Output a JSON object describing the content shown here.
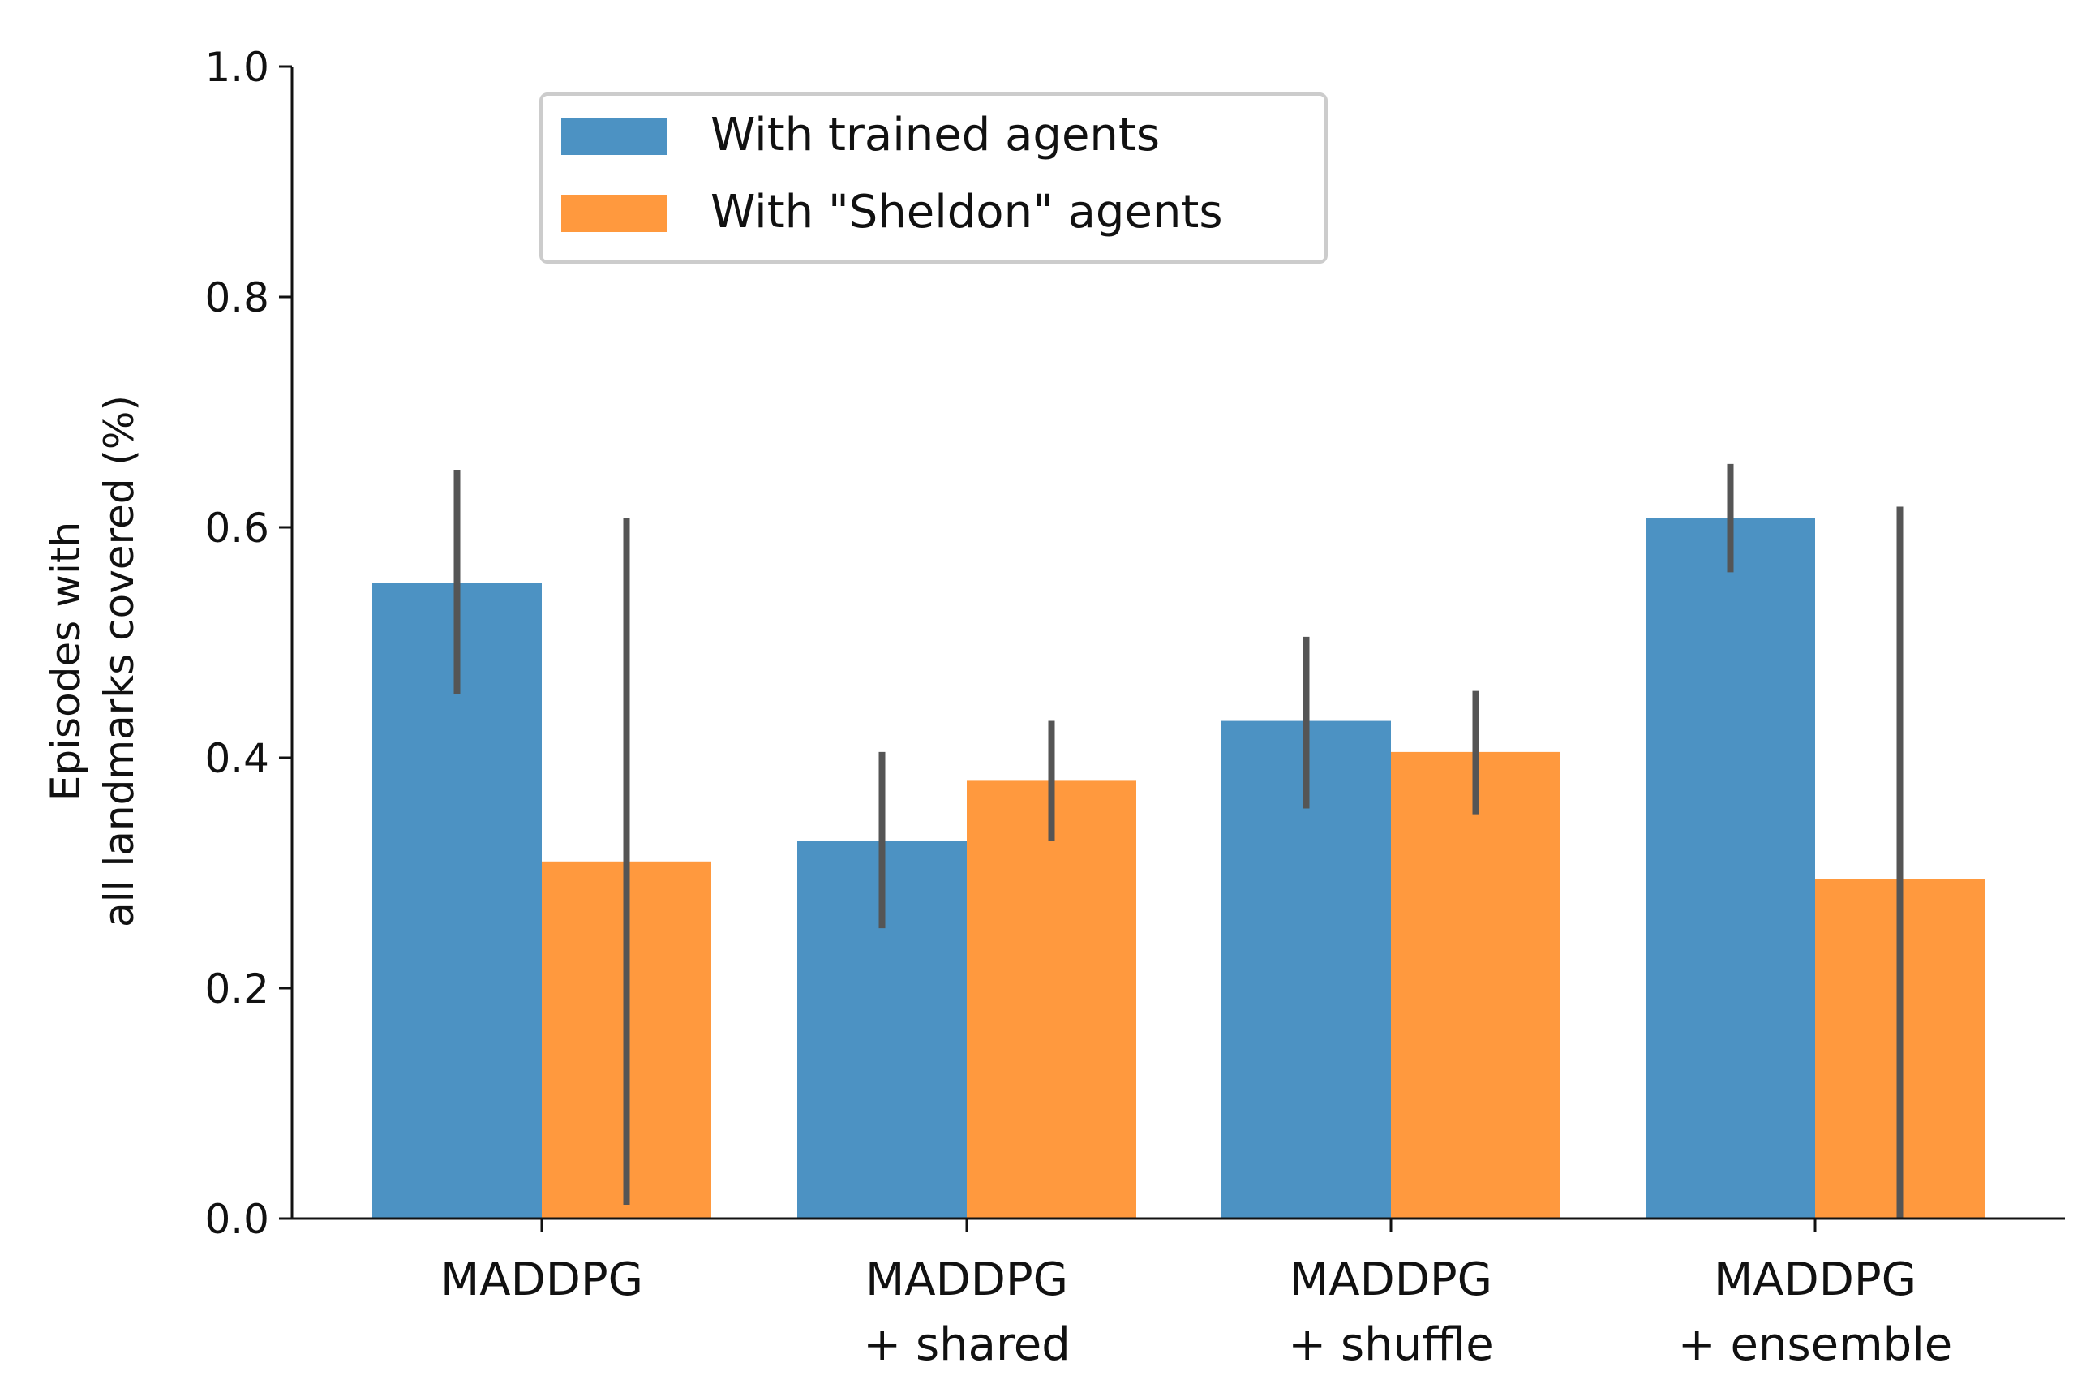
{
  "chart_data": {
    "type": "bar",
    "title": "",
    "xlabel": "",
    "ylabel": [
      "Episodes with",
      "all landmarks covered (%)"
    ],
    "ylim": [
      0,
      1
    ],
    "yticks": [
      "0.0",
      "0.2",
      "0.4",
      "0.6",
      "0.8",
      "1.0"
    ],
    "ytick_values": [
      0,
      0.2,
      0.4,
      0.6,
      0.8,
      1.0
    ],
    "categories": [
      [
        "MADDPG"
      ],
      [
        "MADDPG",
        "+ shared"
      ],
      [
        "MADDPG",
        "+ shuffle"
      ],
      [
        "MADDPG",
        "+ ensemble"
      ]
    ],
    "grid": false,
    "legend_position": "top-left",
    "series": [
      {
        "name": "With trained agents",
        "color": "#4c92c3",
        "values": [
          0.552,
          0.328,
          0.432,
          0.608
        ],
        "error_low": [
          0.455,
          0.252,
          0.356,
          0.561
        ],
        "error_high": [
          0.65,
          0.405,
          0.505,
          0.655
        ]
      },
      {
        "name": "With \"Sheldon\" agents",
        "color": "#ff993e",
        "values": [
          0.31,
          0.38,
          0.405,
          0.295
        ],
        "error_low": [
          0.012,
          0.328,
          0.351,
          0.0
        ],
        "error_high": [
          0.608,
          0.432,
          0.458,
          0.618
        ]
      }
    ],
    "error_bar_color": "#555555"
  }
}
